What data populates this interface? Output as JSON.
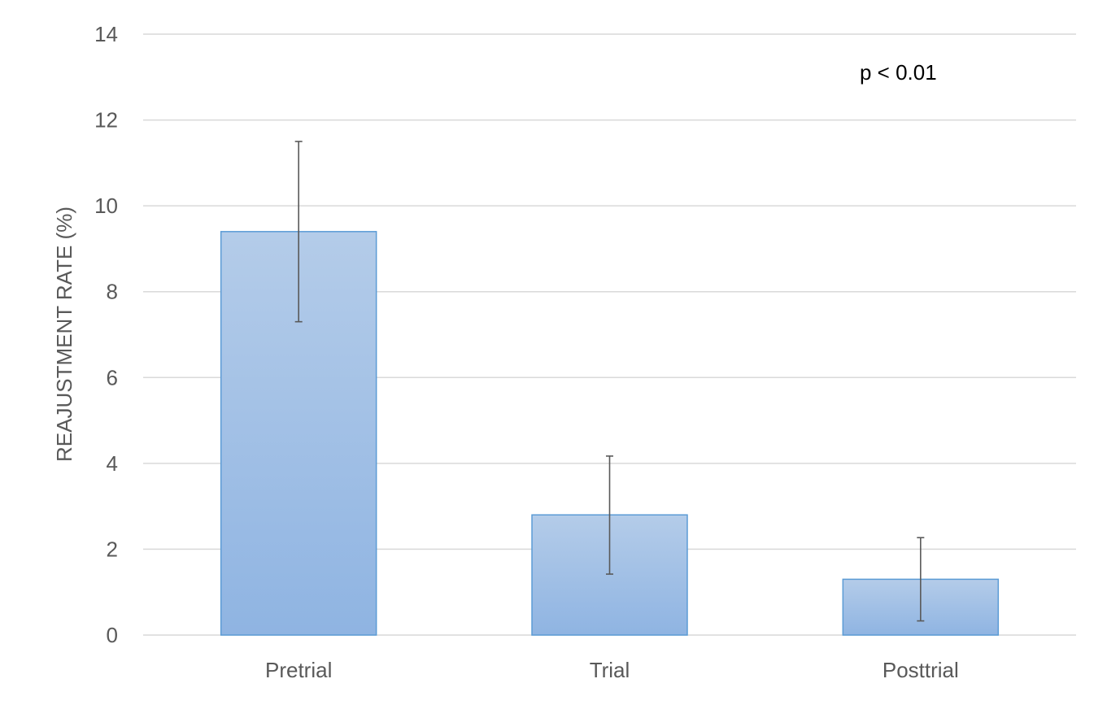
{
  "chart_data": {
    "type": "bar",
    "title": "",
    "xlabel": "",
    "ylabel": "REAJUSTMENT RATE (%)",
    "categories": [
      "Pretrial",
      "Trial",
      "Posttrial"
    ],
    "values": [
      9.4,
      2.8,
      1.3
    ],
    "error_high": [
      11.5,
      4.17,
      2.27
    ],
    "error_low": [
      7.3,
      1.42,
      0.33
    ],
    "ylim": [
      0,
      14
    ],
    "yticks": [
      "0",
      "2",
      "4",
      "6",
      "8",
      "10",
      "12",
      "14"
    ],
    "grid": true,
    "legend": "none",
    "annotation": "p < 0.01",
    "colors": {
      "bar_top": "#b4cce9",
      "bar_bottom": "#8fb4e2",
      "bar_border": "#5b9bd5",
      "error_bar": "#595959",
      "grid": "#d9d9d9"
    }
  }
}
